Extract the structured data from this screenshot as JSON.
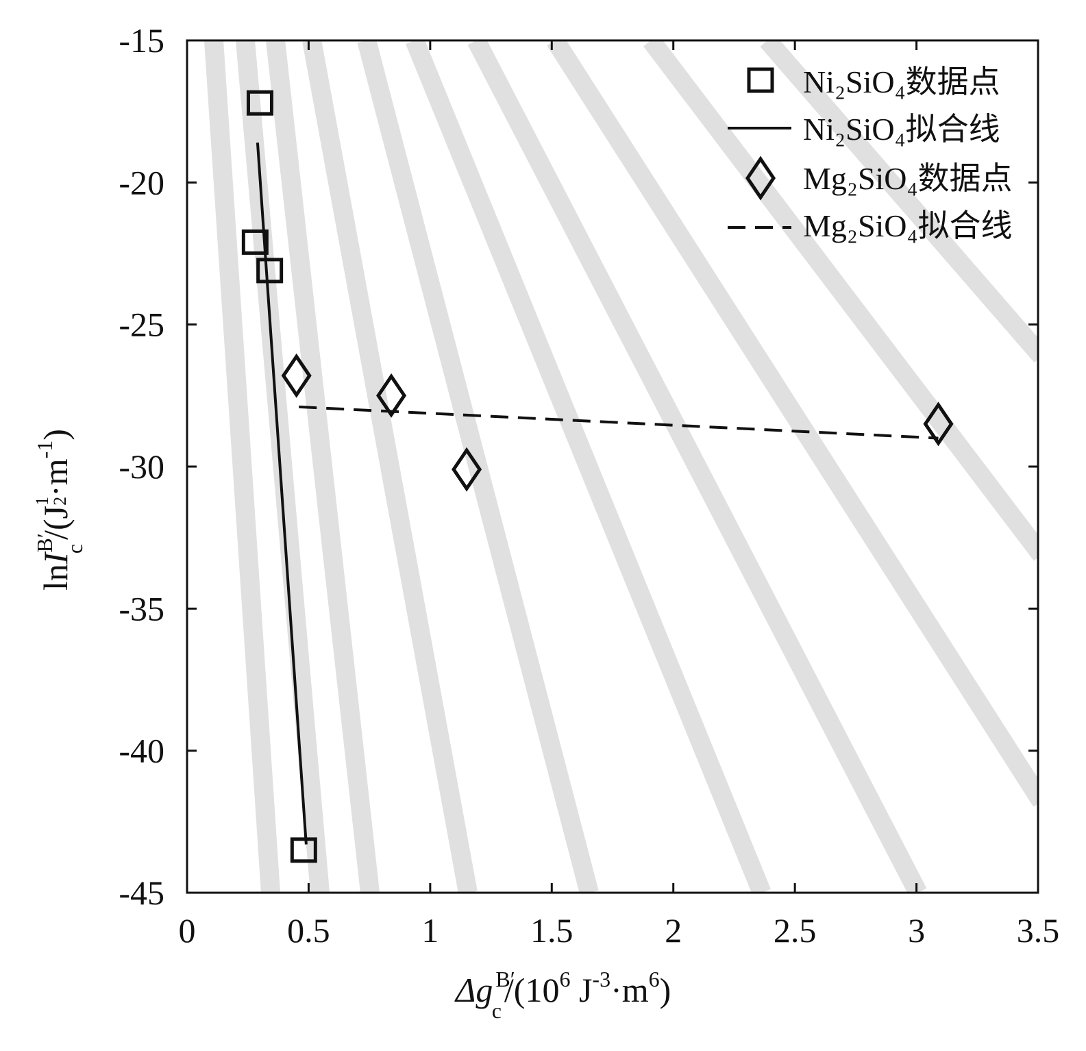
{
  "chart_data": {
    "type": "scatter",
    "xlim": [
      0,
      3.5
    ],
    "ylim": [
      -45,
      -15
    ],
    "x_ticks": [
      "0",
      "0.5",
      "1",
      "1.5",
      "2",
      "2.5",
      "3",
      "3.5"
    ],
    "y_ticks": [
      "-15",
      "-20",
      "-25",
      "-30",
      "-35",
      "-40",
      "-45"
    ],
    "xlabel": {
      "prefix": "Δg",
      "sub": "c",
      "sup": "B′",
      "unit_open": "/(10",
      "unit_exp1": "6",
      "unit_mid": " J",
      "unit_exp2": "-3",
      "unit_dot": "·m",
      "unit_exp3": "6",
      "unit_close": ")"
    },
    "ylabel": {
      "prefix": "ln",
      "var": "I",
      "sub": "c",
      "sup": "B′",
      "unit_open": "/(J",
      "unit_frac_num": "1",
      "unit_frac_den": "2",
      "unit_dot": "·m",
      "unit_exp": "-1",
      "unit_close": ")"
    },
    "grid": false,
    "legend_position": "top-right",
    "legend": [
      {
        "label": "Ni₂SiO₄数据点",
        "marker": "square"
      },
      {
        "label": "Ni₂SiO₄拟合线",
        "line": "solid"
      },
      {
        "label": "Mg₂SiO₄数据点",
        "marker": "diamond"
      },
      {
        "label": "Mg₂SiO₄拟合线",
        "line": "dashed"
      }
    ],
    "series": [
      {
        "name": "Ni₂SiO₄数据点",
        "kind": "scatter",
        "marker": "square",
        "points": [
          [
            0.3,
            -17.2
          ],
          [
            0.28,
            -22.1
          ],
          [
            0.34,
            -23.1
          ],
          [
            0.48,
            -43.5
          ]
        ]
      },
      {
        "name": "Ni₂SiO₄拟合线",
        "kind": "line",
        "style": "solid",
        "points": [
          [
            0.29,
            -18.6
          ],
          [
            0.49,
            -43.3
          ]
        ]
      },
      {
        "name": "Mg₂SiO₄数据点",
        "kind": "scatter",
        "marker": "diamond",
        "points": [
          [
            0.45,
            -26.8
          ],
          [
            0.84,
            -27.5
          ],
          [
            1.15,
            -30.1
          ],
          [
            3.09,
            -28.5
          ]
        ]
      },
      {
        "name": "Mg₂SiO₄拟合线",
        "kind": "line",
        "style": "dashed",
        "points": [
          [
            0.46,
            -27.9
          ],
          [
            3.09,
            -29.0
          ]
        ]
      }
    ]
  },
  "style": {
    "stripe_color": "#e0e0e0",
    "axis_color": "#111111",
    "marker_color": "#111111"
  }
}
